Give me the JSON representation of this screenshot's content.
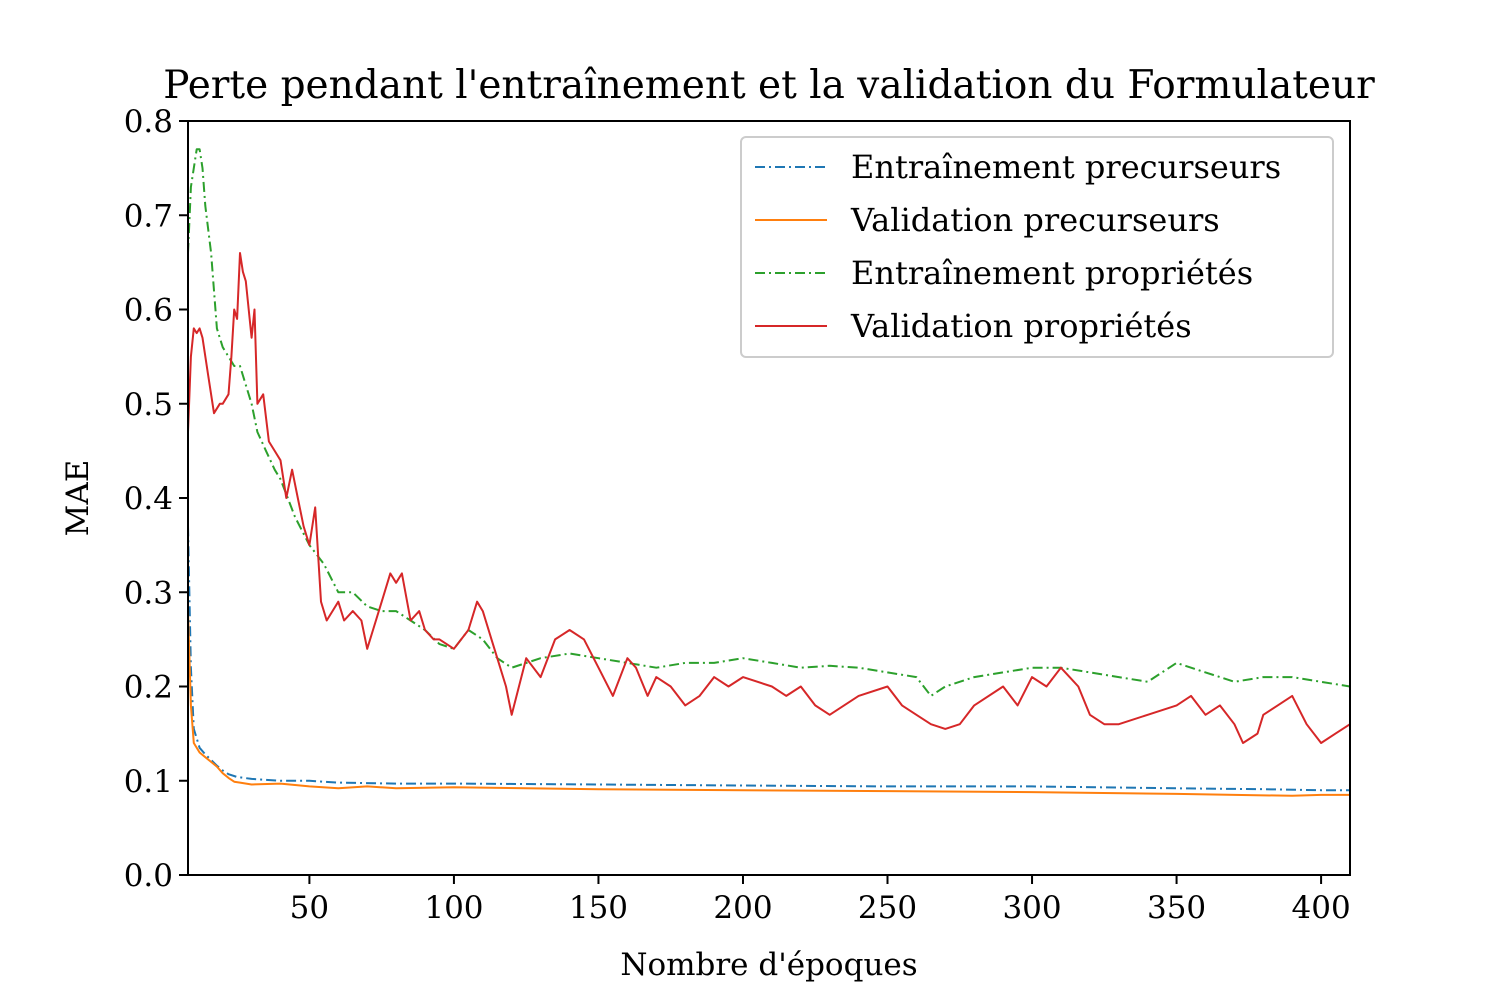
{
  "chart_data": {
    "type": "line",
    "title": "Perte pendant l'entraînement et la validation du Formulateur",
    "xlabel": "Nombre d'époques",
    "ylabel": "MAE",
    "xlim": [
      8,
      410
    ],
    "ylim": [
      0.0,
      0.8
    ],
    "xticks": [
      50,
      100,
      150,
      200,
      250,
      300,
      350,
      400
    ],
    "xtick_labels": [
      "50",
      "100",
      "150",
      "200",
      "250",
      "300",
      "350",
      "400"
    ],
    "yticks": [
      0.0,
      0.1,
      0.2,
      0.3,
      0.4,
      0.5,
      0.6,
      0.7,
      0.8
    ],
    "ytick_labels": [
      "0.0",
      "0.1",
      "0.2",
      "0.3",
      "0.4",
      "0.5",
      "0.6",
      "0.7",
      "0.8"
    ],
    "legend_position": "top-right",
    "series": [
      {
        "name": "Entraînement precurseurs",
        "color": "#1f77b4",
        "style": "dashdot",
        "x": [
          8,
          9,
          10,
          12,
          14,
          16,
          18,
          20,
          22,
          25,
          30,
          40,
          50,
          60,
          80,
          100,
          150,
          200,
          250,
          300,
          350,
          380,
          400,
          410
        ],
        "y": [
          0.37,
          0.22,
          0.155,
          0.135,
          0.128,
          0.122,
          0.116,
          0.111,
          0.107,
          0.104,
          0.102,
          0.1,
          0.1,
          0.098,
          0.097,
          0.097,
          0.096,
          0.095,
          0.094,
          0.094,
          0.092,
          0.091,
          0.09,
          0.09
        ]
      },
      {
        "name": "Validation precurseurs",
        "color": "#ff7f0e",
        "style": "solid",
        "x": [
          8,
          9,
          10,
          12,
          14,
          16,
          18,
          20,
          22,
          24,
          26,
          30,
          40,
          50,
          60,
          70,
          80,
          100,
          150,
          200,
          250,
          300,
          350,
          390,
          400,
          410
        ],
        "y": [
          0.28,
          0.18,
          0.14,
          0.13,
          0.125,
          0.12,
          0.115,
          0.108,
          0.103,
          0.099,
          0.098,
          0.096,
          0.097,
          0.094,
          0.092,
          0.094,
          0.092,
          0.093,
          0.091,
          0.09,
          0.089,
          0.088,
          0.086,
          0.084,
          0.085,
          0.085
        ]
      },
      {
        "name": "Entraînement propriétés",
        "color": "#2ca02c",
        "style": "dashdot",
        "x": [
          8,
          9,
          10,
          11,
          12,
          13,
          14,
          16,
          18,
          20,
          22,
          24,
          26,
          28,
          30,
          32,
          35,
          38,
          40,
          45,
          50,
          55,
          60,
          65,
          70,
          75,
          80,
          85,
          90,
          95,
          100,
          105,
          110,
          115,
          120,
          130,
          140,
          150,
          160,
          170,
          180,
          190,
          200,
          210,
          220,
          230,
          240,
          250,
          260,
          265,
          270,
          280,
          290,
          300,
          310,
          320,
          330,
          340,
          350,
          360,
          370,
          380,
          390,
          400,
          410
        ],
        "y": [
          0.66,
          0.73,
          0.75,
          0.77,
          0.77,
          0.75,
          0.71,
          0.66,
          0.58,
          0.56,
          0.55,
          0.54,
          0.54,
          0.52,
          0.5,
          0.47,
          0.45,
          0.43,
          0.42,
          0.38,
          0.35,
          0.33,
          0.3,
          0.3,
          0.285,
          0.28,
          0.28,
          0.27,
          0.26,
          0.245,
          0.24,
          0.26,
          0.25,
          0.23,
          0.22,
          0.23,
          0.235,
          0.23,
          0.225,
          0.22,
          0.225,
          0.225,
          0.23,
          0.225,
          0.22,
          0.222,
          0.22,
          0.215,
          0.21,
          0.19,
          0.2,
          0.21,
          0.215,
          0.22,
          0.22,
          0.215,
          0.21,
          0.205,
          0.225,
          0.215,
          0.205,
          0.21,
          0.21,
          0.205,
          0.2
        ]
      },
      {
        "name": "Validation propriétés",
        "color": "#d62728",
        "style": "solid",
        "x": [
          8,
          9,
          10,
          11,
          12,
          13,
          15,
          17,
          19,
          20,
          22,
          23,
          24,
          25,
          26,
          27,
          28,
          30,
          31,
          32,
          34,
          36,
          38,
          40,
          42,
          44,
          46,
          48,
          50,
          52,
          54,
          56,
          58,
          60,
          62,
          65,
          68,
          70,
          72,
          75,
          78,
          80,
          82,
          85,
          88,
          90,
          93,
          95,
          100,
          105,
          108,
          110,
          113,
          115,
          118,
          120,
          125,
          130,
          135,
          140,
          145,
          150,
          155,
          160,
          163,
          167,
          170,
          175,
          180,
          185,
          190,
          195,
          200,
          210,
          215,
          220,
          225,
          230,
          240,
          250,
          255,
          260,
          265,
          270,
          275,
          280,
          290,
          295,
          300,
          305,
          310,
          313,
          316,
          320,
          325,
          330,
          340,
          350,
          355,
          360,
          365,
          370,
          373,
          378,
          380,
          385,
          390,
          395,
          400,
          405,
          410
        ],
        "y": [
          0.47,
          0.55,
          0.58,
          0.575,
          0.58,
          0.57,
          0.53,
          0.49,
          0.5,
          0.5,
          0.51,
          0.55,
          0.6,
          0.59,
          0.66,
          0.64,
          0.63,
          0.57,
          0.6,
          0.5,
          0.51,
          0.46,
          0.45,
          0.44,
          0.4,
          0.43,
          0.4,
          0.37,
          0.35,
          0.39,
          0.29,
          0.27,
          0.28,
          0.29,
          0.27,
          0.28,
          0.27,
          0.24,
          0.26,
          0.29,
          0.32,
          0.31,
          0.32,
          0.27,
          0.28,
          0.26,
          0.25,
          0.25,
          0.24,
          0.26,
          0.29,
          0.28,
          0.25,
          0.23,
          0.2,
          0.17,
          0.23,
          0.21,
          0.25,
          0.26,
          0.25,
          0.22,
          0.19,
          0.23,
          0.22,
          0.19,
          0.21,
          0.2,
          0.18,
          0.19,
          0.21,
          0.2,
          0.21,
          0.2,
          0.19,
          0.2,
          0.18,
          0.17,
          0.19,
          0.2,
          0.18,
          0.17,
          0.16,
          0.155,
          0.16,
          0.18,
          0.2,
          0.18,
          0.21,
          0.2,
          0.22,
          0.21,
          0.2,
          0.17,
          0.16,
          0.16,
          0.17,
          0.18,
          0.19,
          0.17,
          0.18,
          0.16,
          0.14,
          0.15,
          0.17,
          0.18,
          0.19,
          0.16,
          0.14,
          0.15,
          0.16
        ]
      }
    ]
  }
}
